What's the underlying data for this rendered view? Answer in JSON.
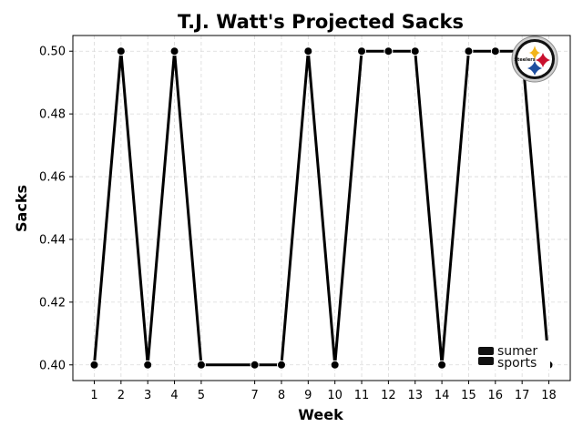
{
  "chart_data": {
    "type": "line",
    "title": "T.J. Watt's Projected Sacks",
    "xlabel": "Week",
    "ylabel": "Sacks",
    "x": [
      1,
      2,
      3,
      4,
      5,
      7,
      8,
      9,
      10,
      11,
      12,
      13,
      14,
      15,
      16,
      17,
      18
    ],
    "values": [
      0.4,
      0.5,
      0.4,
      0.5,
      0.4,
      0.4,
      0.4,
      0.5,
      0.4,
      0.5,
      0.5,
      0.5,
      0.4,
      0.5,
      0.5,
      0.5,
      0.4
    ],
    "xticks": [
      "1",
      "2",
      "3",
      "4",
      "5",
      "7",
      "8",
      "9",
      "10",
      "11",
      "12",
      "13",
      "14",
      "15",
      "16",
      "17",
      "18"
    ],
    "yticks": [
      "0.40",
      "0.42",
      "0.44",
      "0.46",
      "0.48",
      "0.50"
    ],
    "ytick_values": [
      0.4,
      0.42,
      0.44,
      0.46,
      0.48,
      0.5
    ],
    "xlim": [
      0.2,
      18.8
    ],
    "ylim": [
      0.395,
      0.505
    ],
    "grid": true,
    "line_color": "#000000",
    "marker_color": "#000000"
  },
  "branding": {
    "logo_text": "Steelers",
    "sponsor_line1": "sumer",
    "sponsor_line2": "sports"
  }
}
